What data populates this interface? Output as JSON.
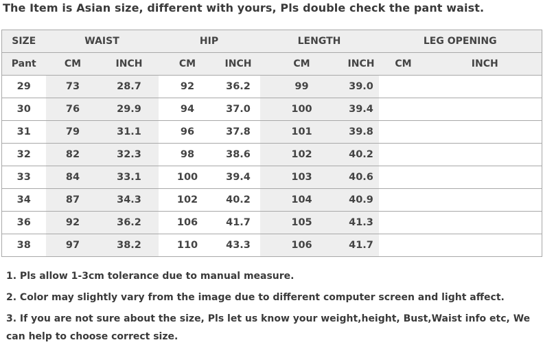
{
  "title": "The Item is Asian size, different with yours, Pls double check the pant waist.",
  "table": {
    "group_headers": [
      "SIZE",
      "WAIST",
      "HIP",
      "LENGTH",
      "LEG OPENING"
    ],
    "sub_headers": [
      "Pant",
      "CM",
      "INCH",
      "CM",
      "INCH",
      "CM",
      "INCH",
      "CM",
      "INCH"
    ],
    "rows": [
      [
        "29",
        "73",
        "28.7",
        "92",
        "36.2",
        "99",
        "39.0",
        "",
        ""
      ],
      [
        "30",
        "76",
        "29.9",
        "94",
        "37.0",
        "100",
        "39.4",
        "",
        ""
      ],
      [
        "31",
        "79",
        "31.1",
        "96",
        "37.8",
        "101",
        "39.8",
        "",
        ""
      ],
      [
        "32",
        "82",
        "32.3",
        "98",
        "38.6",
        "102",
        "40.2",
        "",
        ""
      ],
      [
        "33",
        "84",
        "33.1",
        "100",
        "39.4",
        "103",
        "40.6",
        "",
        ""
      ],
      [
        "34",
        "87",
        "34.3",
        "102",
        "40.2",
        "104",
        "40.9",
        "",
        ""
      ],
      [
        "36",
        "92",
        "36.2",
        "106",
        "41.7",
        "105",
        "41.3",
        "",
        ""
      ],
      [
        "38",
        "97",
        "38.2",
        "110",
        "43.3",
        "106",
        "41.7",
        "",
        ""
      ]
    ]
  },
  "notes": [
    "1. Pls allow 1-3cm tolerance due to manual measure.",
    "2. Color may slightly vary from the image due to different computer screen and light affect.",
    "3. If you are not sure about the size, Pls let us know your weight,height, Bust,Waist info etc, We can help to choose correct size."
  ]
}
